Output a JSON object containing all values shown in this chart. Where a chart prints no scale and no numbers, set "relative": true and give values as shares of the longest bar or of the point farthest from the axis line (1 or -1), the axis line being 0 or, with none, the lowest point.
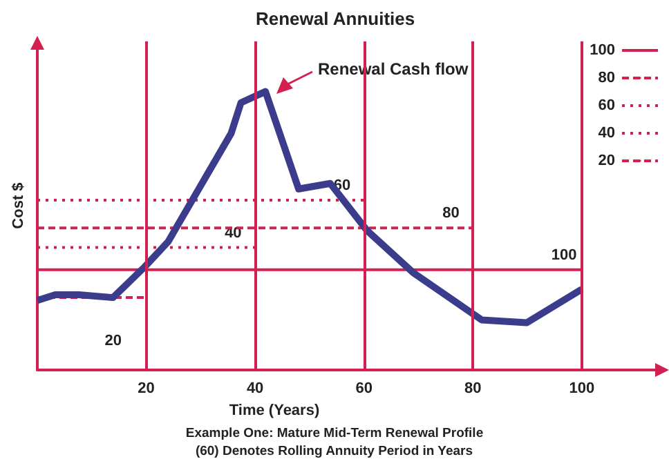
{
  "chart_data": {
    "type": "line",
    "title": "Renewal Annuities",
    "xlabel": "Time (Years)",
    "ylabel": "Cost $",
    "annotations": [
      "Example One: Mature Mid-Term Renewal Profile",
      "(60) Denotes Rolling Annuity Period in Years"
    ],
    "relative": true,
    "xlim": [
      0,
      115
    ],
    "xticks": [
      20,
      40,
      60,
      80,
      100
    ],
    "ref_lines": [
      {
        "axis": "x",
        "value": 20,
        "color": "#d42050"
      },
      {
        "axis": "x",
        "value": 40,
        "color": "#d42050"
      },
      {
        "axis": "x",
        "value": 60,
        "color": "#d42050"
      },
      {
        "axis": "x",
        "value": 80,
        "color": "#d42050"
      },
      {
        "axis": "x",
        "value": 100,
        "color": "#d42050"
      }
    ],
    "legend": "top right",
    "marker": "none",
    "series": [
      {
        "name": "Renewal Cash flow",
        "color": "#3c3c8c",
        "line_style": "solid",
        "x": [
          0,
          3.3,
          7.6,
          13.9,
          19.7,
          24,
          35.6,
          37.4,
          41.9,
          48,
          53.8,
          60.6,
          69,
          81.6,
          89.9,
          100
        ],
        "values": [
          0.25,
          0.27,
          0.27,
          0.26,
          0.37,
          0.46,
          0.85,
          0.96,
          1,
          0.65,
          0.67,
          0.5,
          0.35,
          0.18,
          0.17,
          0.29
        ]
      },
      {
        "name": "100",
        "color": "#d42050",
        "line_style": "solid",
        "x": [
          0,
          100
        ],
        "values": [
          0.36,
          0.36
        ]
      },
      {
        "name": "80",
        "color": "#d42050",
        "line_style": "dashed",
        "x": [
          0,
          80
        ],
        "values": [
          0.51,
          0.51
        ]
      },
      {
        "name": "60",
        "color": "#d42050",
        "line_style": "dotted",
        "x": [
          0,
          60
        ],
        "values": [
          0.61,
          0.61
        ]
      },
      {
        "name": "40",
        "color": "#d42050",
        "line_style": "dotted",
        "x": [
          0,
          40
        ],
        "values": [
          0.44,
          0.44
        ]
      },
      {
        "name": "20",
        "color": "#d42050",
        "line_style": "dashed",
        "x": [
          0,
          20
        ],
        "values": [
          0.26,
          0.26
        ]
      }
    ]
  }
}
